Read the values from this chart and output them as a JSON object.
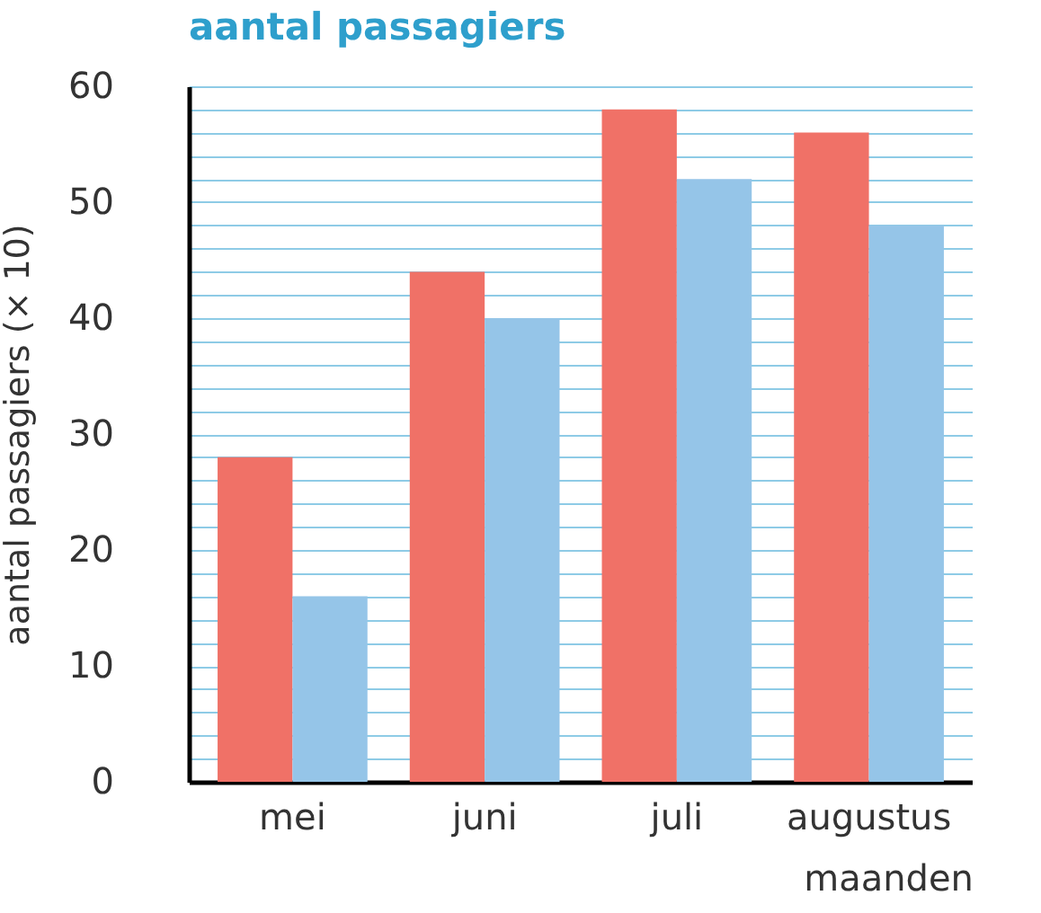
{
  "chart_data": {
    "type": "bar",
    "title": "aantal passagiers",
    "xlabel": "maanden",
    "ylabel": "aantal passagiers (× 10)",
    "categories": [
      "mei",
      "juni",
      "juli",
      "augustus"
    ],
    "series": [
      {
        "color": "#f07167",
        "values": [
          28,
          44,
          58,
          56
        ]
      },
      {
        "color": "#95c5e8",
        "values": [
          16,
          40,
          52,
          48
        ]
      }
    ],
    "ylim": [
      0,
      60
    ],
    "yticks": [
      0,
      {
        "value": 2,
        "label": null
      },
      {
        "value": 4,
        "label": null
      },
      {
        "value": 6,
        "label": null
      },
      {
        "value": 8,
        "label": null
      },
      10,
      {
        "value": 12,
        "label": null
      },
      {
        "value": 14,
        "label": null
      },
      {
        "value": 16,
        "label": null
      },
      {
        "value": 18,
        "label": null
      },
      20,
      {
        "value": 22,
        "label": null
      },
      {
        "value": 24,
        "label": null
      },
      {
        "value": 26,
        "label": null
      },
      {
        "value": 28,
        "label": null
      },
      30,
      {
        "value": 32,
        "label": null
      },
      {
        "value": 34,
        "label": null
      },
      {
        "value": 36,
        "label": null
      },
      {
        "value": 38,
        "label": null
      },
      40,
      {
        "value": 42,
        "label": null
      },
      {
        "value": 44,
        "label": null
      },
      {
        "value": 46,
        "label": null
      },
      {
        "value": 48,
        "label": null
      },
      50,
      {
        "value": 52,
        "label": null
      },
      {
        "value": 54,
        "label": null
      },
      {
        "value": 56,
        "label": null
      },
      {
        "value": 58,
        "label": null
      },
      60
    ],
    "grid": "y",
    "legend": false
  }
}
